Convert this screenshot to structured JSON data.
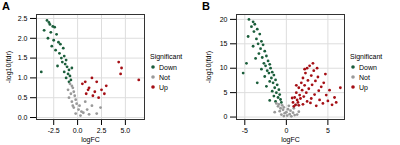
{
  "chart_data": [
    {
      "type": "scatter",
      "title": "A",
      "x_label": "logFC",
      "y_label": "-log10(fdr)",
      "legend_title": "Significant",
      "xlim": [
        -4.3,
        7.0
      ],
      "xticks": [
        -2.5,
        {
          "value": 0,
          "label": "0.0"
        },
        2.5,
        {
          "value": 5,
          "label": "5.0"
        }
      ],
      "ylim": [
        -0.05,
        2.6
      ],
      "yticks": [
        {
          "value": 0,
          "label": "0.0"
        },
        0.5,
        {
          "value": 1,
          "label": "1.0"
        },
        1.5,
        {
          "value": 2,
          "label": "2.0"
        },
        2.5
      ],
      "grid": true,
      "legend": "right",
      "series": [
        {
          "name": "Down",
          "color": "#1b5e3b",
          "x": [
            -3.2,
            -3.0,
            -2.9,
            -2.6,
            -2.4,
            -3.5,
            -2.8,
            -2.2,
            -3.1,
            -2.5,
            -2.0,
            -1.8,
            -2.7,
            -1.5,
            -2.3,
            -1.9,
            -1.4,
            -1.7,
            -1.2,
            -1.6,
            -1.3,
            -2.1,
            -1.1,
            -0.9,
            -1.4,
            -1.0,
            -0.8,
            -1.2,
            -0.7,
            -0.9,
            -3.8,
            -0.6
          ],
          "values": [
            2.45,
            2.4,
            2.35,
            2.3,
            2.28,
            2.2,
            2.15,
            2.1,
            2.0,
            1.95,
            1.9,
            1.85,
            1.8,
            1.75,
            1.7,
            1.62,
            1.55,
            1.5,
            1.45,
            1.4,
            1.35,
            1.3,
            1.28,
            1.2,
            1.15,
            1.1,
            1.05,
            1.0,
            0.95,
            0.9,
            1.15,
            1.25
          ]
        },
        {
          "name": "Not",
          "color": "#999999",
          "x": [
            -0.8,
            -0.6,
            -0.5,
            -1.0,
            -0.4,
            -0.7,
            -0.3,
            -0.9,
            -0.2,
            -0.6,
            -0.1,
            0.2,
            -0.4,
            0.1,
            0.4,
            -0.2,
            0.6,
            1.0,
            1.5,
            2.0,
            2.4,
            1.2,
            0.3,
            -0.5,
            0.8
          ],
          "values": [
            0.85,
            0.8,
            0.75,
            0.7,
            0.65,
            0.6,
            0.55,
            0.5,
            0.45,
            0.4,
            0.35,
            0.3,
            0.25,
            0.2,
            0.15,
            0.1,
            0.12,
            0.2,
            0.3,
            0.1,
            0.25,
            0.08,
            0.05,
            0.3,
            0.4
          ]
        },
        {
          "name": "Up",
          "color": "#a50f15",
          "x": [
            0.5,
            0.8,
            1.2,
            1.5,
            2.0,
            2.5,
            1.8,
            3.0,
            0.9,
            1.6,
            2.2,
            4.3,
            4.6,
            4.5,
            6.4,
            2.8,
            1.1
          ],
          "values": [
            0.85,
            0.9,
            0.75,
            1.0,
            0.9,
            0.7,
            0.65,
            0.8,
            0.6,
            0.55,
            0.5,
            1.4,
            1.25,
            1.1,
            0.95,
            0.6,
            0.7
          ]
        }
      ]
    },
    {
      "type": "scatter",
      "title": "B",
      "x_label": "logFC",
      "y_label": "-log10(fdr)",
      "legend_title": "Significant",
      "xlim": [
        -6.0,
        7.0
      ],
      "xticks": [
        -5,
        0,
        5
      ],
      "ylim": [
        -0.5,
        21
      ],
      "yticks": [
        0,
        5,
        10,
        15,
        20
      ],
      "grid": true,
      "legend": "right",
      "series": [
        {
          "name": "Down",
          "color": "#1b5e3b",
          "x": [
            -4.5,
            -4.0,
            -3.8,
            -4.2,
            -3.5,
            -3.9,
            -3.2,
            -4.6,
            -3.6,
            -3.0,
            -3.4,
            -2.8,
            -4.0,
            -3.1,
            -2.6,
            -3.3,
            -2.4,
            -2.9,
            -3.7,
            -2.2,
            -2.7,
            -2.0,
            -2.5,
            -1.9,
            -3.0,
            -2.3,
            -1.7,
            -2.1,
            -1.5,
            -2.6,
            -1.8,
            -1.3,
            -2.0,
            -1.6,
            -1.1,
            -2.4,
            -1.4,
            -0.9,
            -1.7,
            -1.2,
            -0.8,
            -1.5,
            -1.0,
            -0.7,
            -2.0,
            -1.3,
            -0.6,
            -5.2,
            -4.8,
            -3.5
          ],
          "values": [
            20,
            19.5,
            19,
            18.5,
            18,
            17.5,
            17,
            16.5,
            16,
            15.5,
            15,
            14.8,
            14.5,
            14,
            13.5,
            13,
            12.5,
            12.2,
            12,
            11.5,
            11,
            10.8,
            10.5,
            10,
            9.8,
            9.5,
            9.2,
            9,
            8.6,
            8.3,
            8,
            7.6,
            7.3,
            7,
            6.6,
            6.3,
            6,
            5.6,
            5.3,
            5,
            4.6,
            4.3,
            4,
            3.6,
            3.4,
            3.2,
            3,
            9,
            11,
            7
          ]
        },
        {
          "name": "Not",
          "color": "#999999",
          "x": [
            -1.2,
            -0.9,
            -0.5,
            -1.0,
            -0.3,
            -0.7,
            0.2,
            -0.4,
            0.5,
            -0.8,
            0.0,
            0.8,
            -0.2,
            0.4,
            -0.6,
            1.0,
            0.1,
            -0.3,
            0.6,
            1.3,
            1.5,
            0.9,
            0.3,
            -1.4,
            1.2
          ],
          "values": [
            2.8,
            2.6,
            2.4,
            2.2,
            2.0,
            1.8,
            1.6,
            1.5,
            1.3,
            1.2,
            1.0,
            0.9,
            0.8,
            0.6,
            0.5,
            0.4,
            0.3,
            0.2,
            0.15,
            0.5,
            1.1,
            1.8,
            2.3,
            1.0,
            2.5
          ]
        },
        {
          "name": "Up",
          "color": "#a50f15",
          "x": [
            0.8,
            1.0,
            1.2,
            1.5,
            1.8,
            2.0,
            2.3,
            2.5,
            2.8,
            1.3,
            1.6,
            1.9,
            2.2,
            2.6,
            3.0,
            3.3,
            1.1,
            1.4,
            1.7,
            2.1,
            2.4,
            2.7,
            3.1,
            3.5,
            3.8,
            2.0,
            2.5,
            3.0,
            3.4,
            3.9,
            4.2,
            4.5,
            0.9,
            1.5,
            2.9,
            4.0,
            4.8,
            5.2,
            3.6,
            4.4,
            5.0,
            5.8,
            6.5,
            4.7,
            3.2,
            2.2,
            1.2,
            0.7,
            5.5,
            6.0,
            3.7
          ],
          "values": [
            3,
            4,
            5,
            6,
            7,
            8,
            9,
            10,
            10.5,
            3.5,
            4.5,
            5.5,
            6.5,
            7.5,
            8.5,
            9.5,
            2.5,
            3,
            3.8,
            4.2,
            5,
            5.8,
            6.6,
            7.4,
            8.2,
            2.6,
            3.2,
            3.8,
            4.6,
            5.4,
            6.2,
            7,
            2.2,
            2.4,
            2.9,
            3.5,
            4.5,
            5.5,
            2.3,
            2.8,
            3.3,
            4,
            6,
            8.8,
            11,
            9.8,
            6.5,
            3.9,
            2.5,
            3,
            10
          ]
        }
      ]
    }
  ]
}
